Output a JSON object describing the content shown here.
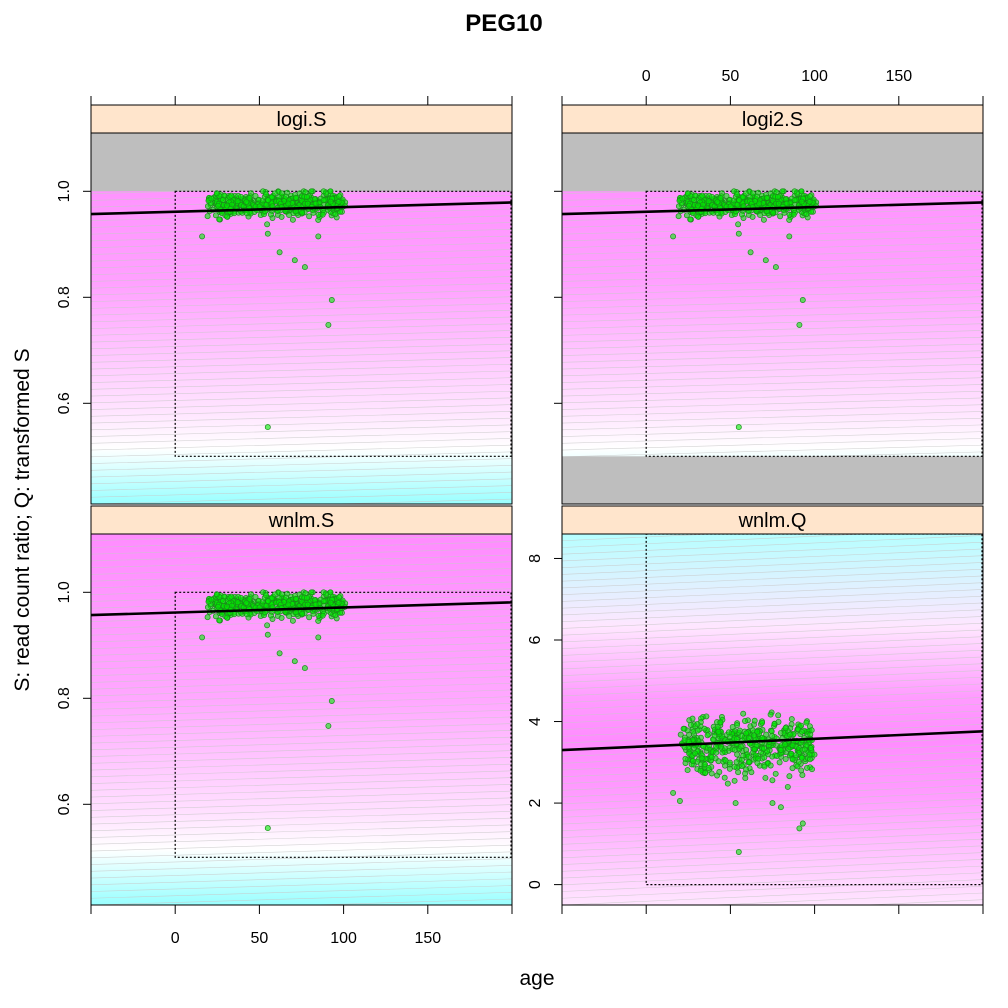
{
  "title": "PEG10",
  "chart_data": {
    "type": "scatter",
    "title": "PEG10",
    "xlabel": "age",
    "ylabel": "S: read count ratio;  Q: transformed S",
    "xlim": [
      -50,
      200
    ],
    "x_ticks": [
      0,
      50,
      100,
      150
    ],
    "x_tick_labels": [
      "0",
      "50",
      "100",
      "150"
    ],
    "reference_box": {
      "x": [
        0,
        200
      ]
    },
    "panels": [
      {
        "name": "logi.S",
        "ylim": [
          0.41,
          1.11
        ],
        "y_ticks": [
          0.6,
          0.8,
          1.0
        ],
        "y_tick_labels": [
          "0.6",
          "0.8",
          "1.0"
        ],
        "fit_line": {
          "x": [
            -50,
            200
          ],
          "y": [
            0.957,
            0.979
          ]
        },
        "reference_box_y": [
          0.5,
          1.0
        ],
        "invalid_regions": [
          [
            1.0,
            1.11
          ]
        ],
        "background": "fitted-density",
        "points": "shared_S"
      },
      {
        "name": "logi2.S",
        "ylim": [
          0.41,
          1.11
        ],
        "y_ticks": [
          0.6,
          0.8,
          1.0
        ],
        "y_tick_labels": [
          "0.6",
          "0.8",
          "1.0"
        ],
        "fit_line": {
          "x": [
            -50,
            200
          ],
          "y": [
            0.957,
            0.979
          ]
        },
        "reference_box_y": [
          0.5,
          1.0
        ],
        "invalid_regions": [
          [
            1.0,
            1.11
          ],
          [
            0.41,
            0.5
          ]
        ],
        "background": "fitted-density",
        "points": "shared_S"
      },
      {
        "name": "wnlm.S",
        "ylim": [
          0.41,
          1.11
        ],
        "y_ticks": [
          0.6,
          0.8,
          1.0
        ],
        "y_tick_labels": [
          "0.6",
          "0.8",
          "1.0"
        ],
        "fit_line": {
          "x": [
            -50,
            200
          ],
          "y": [
            0.957,
            0.981
          ]
        },
        "reference_box_y": [
          0.5,
          1.0
        ],
        "invalid_regions": [],
        "background": "fitted-density",
        "points": "shared_S"
      },
      {
        "name": "wnlm.Q",
        "ylim": [
          -0.5,
          8.6
        ],
        "y_ticks": [
          0,
          2,
          4,
          6,
          8
        ],
        "y_tick_labels": [
          "0",
          "2",
          "4",
          "6",
          "8"
        ],
        "fit_line": {
          "x": [
            -50,
            200
          ],
          "y": [
            3.3,
            3.76
          ]
        },
        "reference_box_y": [
          0,
          8.6
        ],
        "invalid_regions": [],
        "background": "fitted-density",
        "points": "Q"
      }
    ],
    "points_S_outliers": [
      [
        55,
        0.555
      ],
      [
        91,
        0.748
      ],
      [
        93,
        0.795
      ],
      [
        62,
        0.885
      ],
      [
        71,
        0.87
      ],
      [
        77,
        0.857
      ],
      [
        16,
        0.915
      ],
      [
        55,
        0.92
      ],
      [
        85,
        0.915
      ]
    ],
    "points_S_cluster": {
      "n": 500,
      "x_range": [
        18,
        102
      ],
      "y_range": [
        0.9,
        1.0
      ],
      "y_center": 0.975
    },
    "points_Q_outliers": [
      [
        55,
        0.8
      ],
      [
        91,
        1.38
      ],
      [
        93,
        1.5
      ],
      [
        16,
        2.25
      ],
      [
        20,
        2.05
      ],
      [
        75,
        2.0
      ],
      [
        80,
        1.9
      ]
    ],
    "points_Q_cluster": {
      "n": 500,
      "x_range": [
        20,
        102
      ],
      "y_range": [
        2.0,
        5.2
      ],
      "y_center": 3.4
    },
    "colors": {
      "strip_bg": "#ffe5cc",
      "invalid_region": "#bebebe",
      "point_fill": "#00ee00",
      "point_stroke": "#1a8c1a",
      "fit_line": "#000000",
      "density_high": "#ff8cff",
      "density_low": "#99ffff"
    }
  }
}
